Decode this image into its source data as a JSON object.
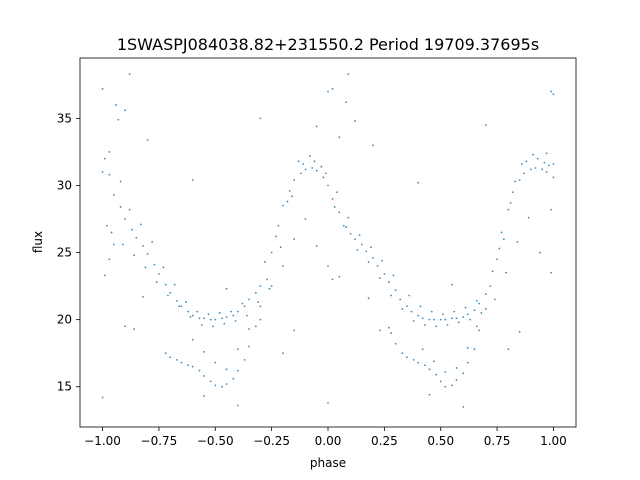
{
  "chart_data": {
    "type": "scatter",
    "title": "1SWASPJ084038.82+231550.2 Period 19709.37695s",
    "xlabel": "phase",
    "ylabel": "flux",
    "xlim": [
      -1.1,
      1.1
    ],
    "ylim": [
      12,
      39.5
    ],
    "x_ticks": [
      -1.0,
      -0.75,
      -0.5,
      -0.25,
      0.0,
      0.25,
      0.5,
      0.75,
      1.0
    ],
    "x_tick_labels": [
      "−1.00",
      "−0.75",
      "−0.50",
      "−0.25",
      "0.00",
      "0.25",
      "0.50",
      "0.75",
      "1.00"
    ],
    "y_ticks": [
      15,
      20,
      25,
      30,
      35
    ],
    "y_tick_labels": [
      "15",
      "20",
      "25",
      "30",
      "35"
    ],
    "grid": false,
    "legend": "none",
    "marker_color": "#1f77b4",
    "series": [
      {
        "points": [
          [
            -1.0,
            31.0
          ],
          [
            -0.97,
            30.8
          ],
          [
            -0.95,
            29.3
          ],
          [
            -0.92,
            28.4
          ],
          [
            -0.9,
            27.5
          ],
          [
            -0.87,
            26.7
          ],
          [
            -0.85,
            26.1
          ],
          [
            -0.82,
            25.5
          ],
          [
            -0.8,
            24.9
          ],
          [
            -0.77,
            24.1
          ],
          [
            -0.75,
            23.4
          ],
          [
            -0.72,
            22.6
          ],
          [
            -0.7,
            22.0
          ],
          [
            -0.67,
            21.4
          ],
          [
            -0.65,
            21.0
          ],
          [
            -0.62,
            20.6
          ],
          [
            -0.6,
            20.3
          ],
          [
            -0.57,
            20.1
          ],
          [
            -0.55,
            20.1
          ],
          [
            -0.52,
            20.0
          ],
          [
            -0.5,
            20.0
          ],
          [
            -0.47,
            20.1
          ],
          [
            -0.45,
            20.2
          ],
          [
            -0.42,
            20.3
          ],
          [
            -0.4,
            20.6
          ],
          [
            -0.37,
            21.0
          ],
          [
            -0.35,
            21.5
          ],
          [
            -0.32,
            22.0
          ],
          [
            -0.3,
            22.5
          ],
          [
            -0.97,
            32.5
          ],
          [
            -0.92,
            30.3
          ],
          [
            -0.88,
            28.2
          ],
          [
            -0.83,
            27.1
          ],
          [
            -0.78,
            25.8
          ],
          [
            -0.73,
            23.9
          ],
          [
            -0.68,
            22.6
          ],
          [
            -0.63,
            21.3
          ],
          [
            -0.58,
            20.6
          ],
          [
            -0.53,
            20.4
          ],
          [
            -0.48,
            20.5
          ],
          [
            -0.43,
            20.6
          ],
          [
            -0.38,
            21.2
          ],
          [
            -0.96,
            26.5
          ],
          [
            -0.91,
            25.6
          ],
          [
            -0.86,
            24.8
          ],
          [
            -0.81,
            23.9
          ],
          [
            -0.76,
            22.8
          ],
          [
            -0.71,
            21.8
          ],
          [
            -0.66,
            21.0
          ],
          [
            -0.61,
            20.2
          ],
          [
            -0.56,
            19.6
          ],
          [
            -0.51,
            19.5
          ],
          [
            -0.46,
            19.7
          ],
          [
            -0.41,
            19.9
          ],
          [
            -0.36,
            20.3
          ],
          [
            -0.31,
            21.3
          ],
          [
            -0.72,
            17.5
          ],
          [
            -0.7,
            17.2
          ],
          [
            -0.67,
            17.0
          ],
          [
            -0.65,
            16.8
          ],
          [
            -0.62,
            16.6
          ],
          [
            -0.6,
            16.5
          ],
          [
            -0.57,
            16.2
          ],
          [
            -0.55,
            15.8
          ],
          [
            -0.52,
            15.4
          ],
          [
            -0.5,
            15.1
          ],
          [
            -0.47,
            15.0
          ],
          [
            -0.45,
            15.2
          ],
          [
            -0.42,
            15.6
          ],
          [
            -0.4,
            16.2
          ],
          [
            -0.37,
            17.0
          ],
          [
            -0.35,
            18.0
          ],
          [
            -0.32,
            19.5
          ],
          [
            -0.3,
            21.0
          ],
          [
            -0.27,
            23.0
          ],
          [
            -0.25,
            25.0
          ],
          [
            -0.22,
            27.0
          ],
          [
            -0.2,
            28.5
          ],
          [
            -0.17,
            29.6
          ],
          [
            -0.15,
            30.4
          ],
          [
            -0.12,
            30.9
          ],
          [
            -0.1,
            31.2
          ],
          [
            -0.07,
            31.3
          ],
          [
            -0.05,
            31.1
          ],
          [
            -0.02,
            30.6
          ],
          [
            0.0,
            30.0
          ],
          [
            0.02,
            29.0
          ],
          [
            0.05,
            28.0
          ],
          [
            0.07,
            27.0
          ],
          [
            0.1,
            26.4
          ],
          [
            0.12,
            26.0
          ],
          [
            0.15,
            25.6
          ],
          [
            0.17,
            25.1
          ],
          [
            0.2,
            24.6
          ],
          [
            0.22,
            24.0
          ],
          [
            0.25,
            23.4
          ],
          [
            0.27,
            22.8
          ],
          [
            0.3,
            22.2
          ],
          [
            -0.6,
            18.5
          ],
          [
            -0.55,
            17.6
          ],
          [
            -0.5,
            16.8
          ],
          [
            -0.45,
            16.3
          ],
          [
            -0.4,
            17.8
          ],
          [
            -0.35,
            19.3
          ],
          [
            -0.28,
            24.3
          ],
          [
            -0.23,
            26.2
          ],
          [
            -0.18,
            28.8
          ],
          [
            -0.13,
            31.8
          ],
          [
            -0.08,
            32.2
          ],
          [
            -0.03,
            31.4
          ],
          [
            0.03,
            28.4
          ],
          [
            0.08,
            26.9
          ],
          [
            0.13,
            25.2
          ],
          [
            0.18,
            24.3
          ],
          [
            0.23,
            23.1
          ],
          [
            0.28,
            21.8
          ],
          [
            -0.25,
            22.5
          ],
          [
            -0.2,
            24.0
          ],
          [
            -0.15,
            26.0
          ],
          [
            -0.1,
            27.5
          ],
          [
            -0.05,
            25.5
          ],
          [
            0.0,
            24.0
          ],
          [
            0.02,
            23.0
          ],
          [
            0.05,
            23.2
          ],
          [
            -0.3,
            20.0
          ],
          [
            -0.26,
            22.3
          ],
          [
            -0.21,
            25.4
          ],
          [
            -0.16,
            29.2
          ],
          [
            -0.11,
            31.6
          ],
          [
            -0.06,
            31.8
          ],
          [
            -0.01,
            30.9
          ],
          [
            0.04,
            29.5
          ],
          [
            0.09,
            27.6
          ],
          [
            0.14,
            26.3
          ],
          [
            0.19,
            25.4
          ],
          [
            0.24,
            24.4
          ],
          [
            0.29,
            23.3
          ],
          [
            0.32,
            21.5
          ],
          [
            0.35,
            21.0
          ],
          [
            0.37,
            20.6
          ],
          [
            0.4,
            20.3
          ],
          [
            0.42,
            20.1
          ],
          [
            0.45,
            20.0
          ],
          [
            0.47,
            20.0
          ],
          [
            0.5,
            20.0
          ],
          [
            0.52,
            20.0
          ],
          [
            0.55,
            20.1
          ],
          [
            0.57,
            20.1
          ],
          [
            0.6,
            20.2
          ],
          [
            0.62,
            20.4
          ],
          [
            0.65,
            20.7
          ],
          [
            0.67,
            21.2
          ],
          [
            0.7,
            21.9
          ],
          [
            0.33,
            20.8
          ],
          [
            0.38,
            19.9
          ],
          [
            0.43,
            19.6
          ],
          [
            0.48,
            19.5
          ],
          [
            0.53,
            19.6
          ],
          [
            0.58,
            19.8
          ],
          [
            0.63,
            20.0
          ],
          [
            0.68,
            20.5
          ],
          [
            0.36,
            21.8
          ],
          [
            0.41,
            21.0
          ],
          [
            0.46,
            20.6
          ],
          [
            0.51,
            20.4
          ],
          [
            0.56,
            20.6
          ],
          [
            0.61,
            20.9
          ],
          [
            0.66,
            21.4
          ],
          [
            0.28,
            19.0
          ],
          [
            0.3,
            18.2
          ],
          [
            0.33,
            17.5
          ],
          [
            0.35,
            17.2
          ],
          [
            0.38,
            17.0
          ],
          [
            0.4,
            16.8
          ],
          [
            0.43,
            16.6
          ],
          [
            0.45,
            16.3
          ],
          [
            0.48,
            15.9
          ],
          [
            0.5,
            15.4
          ],
          [
            0.52,
            15.0
          ],
          [
            0.55,
            15.1
          ],
          [
            0.57,
            15.5
          ],
          [
            0.6,
            16.0
          ],
          [
            0.62,
            16.8
          ],
          [
            0.65,
            17.8
          ],
          [
            0.67,
            19.2
          ],
          [
            0.7,
            20.8
          ],
          [
            0.72,
            22.5
          ],
          [
            0.75,
            24.5
          ],
          [
            0.77,
            26.5
          ],
          [
            0.8,
            28.2
          ],
          [
            0.82,
            29.5
          ],
          [
            0.85,
            30.4
          ],
          [
            0.87,
            30.9
          ],
          [
            0.9,
            31.2
          ],
          [
            0.92,
            31.3
          ],
          [
            0.95,
            31.2
          ],
          [
            0.97,
            31.0
          ],
          [
            1.0,
            30.6
          ],
          [
            0.42,
            17.8
          ],
          [
            0.47,
            16.9
          ],
          [
            0.52,
            16.1
          ],
          [
            0.57,
            16.4
          ],
          [
            0.62,
            17.9
          ],
          [
            0.66,
            19.5
          ],
          [
            0.73,
            23.6
          ],
          [
            0.78,
            26.0
          ],
          [
            0.83,
            30.3
          ],
          [
            0.88,
            31.8
          ],
          [
            0.93,
            32.0
          ],
          [
            0.98,
            31.5
          ],
          [
            0.74,
            21.5
          ],
          [
            0.79,
            23.5
          ],
          [
            0.84,
            25.8
          ],
          [
            0.89,
            27.6
          ],
          [
            0.94,
            25.0
          ],
          [
            0.99,
            23.5
          ],
          [
            0.76,
            25.3
          ],
          [
            0.81,
            28.7
          ],
          [
            0.86,
            31.6
          ],
          [
            0.91,
            32.3
          ],
          [
            0.96,
            31.7
          ],
          [
            1.0,
            31.6
          ],
          [
            -0.99,
            32.0
          ],
          [
            -0.98,
            27.0
          ],
          [
            -0.99,
            23.3
          ],
          [
            -0.97,
            24.5
          ],
          [
            -0.95,
            25.6
          ],
          [
            0.99,
            28.2
          ],
          [
            0.97,
            32.4
          ],
          [
            -1.0,
            37.2
          ],
          [
            -0.94,
            36.0
          ],
          [
            -0.9,
            35.6
          ],
          [
            -0.88,
            38.3
          ],
          [
            -0.93,
            34.9
          ],
          [
            0.0,
            37.0
          ],
          [
            0.02,
            37.2
          ],
          [
            0.08,
            36.2
          ],
          [
            0.09,
            38.3
          ],
          [
            0.12,
            34.8
          ],
          [
            0.99,
            37.0
          ],
          [
            1.0,
            36.8
          ],
          [
            -0.9,
            19.5
          ],
          [
            -0.86,
            19.3
          ],
          [
            0.23,
            19.2
          ],
          [
            0.27,
            19.4
          ],
          [
            -1.0,
            14.2
          ],
          [
            0.0,
            13.8
          ],
          [
            0.6,
            13.5
          ],
          [
            -0.4,
            13.6
          ],
          [
            -0.55,
            14.3
          ],
          [
            0.45,
            14.4
          ],
          [
            -0.2,
            17.5
          ],
          [
            0.8,
            17.8
          ],
          [
            -0.15,
            19.2
          ],
          [
            0.85,
            19.1
          ],
          [
            -0.6,
            30.4
          ],
          [
            0.4,
            30.2
          ],
          [
            -0.8,
            33.4
          ],
          [
            0.2,
            33.0
          ],
          [
            -0.3,
            35.0
          ],
          [
            0.7,
            34.5
          ],
          [
            0.18,
            21.6
          ],
          [
            -0.82,
            21.7
          ],
          [
            -0.45,
            22.3
          ],
          [
            0.55,
            22.6
          ],
          [
            -0.05,
            34.4
          ],
          [
            0.05,
            33.6
          ]
        ]
      }
    ]
  }
}
